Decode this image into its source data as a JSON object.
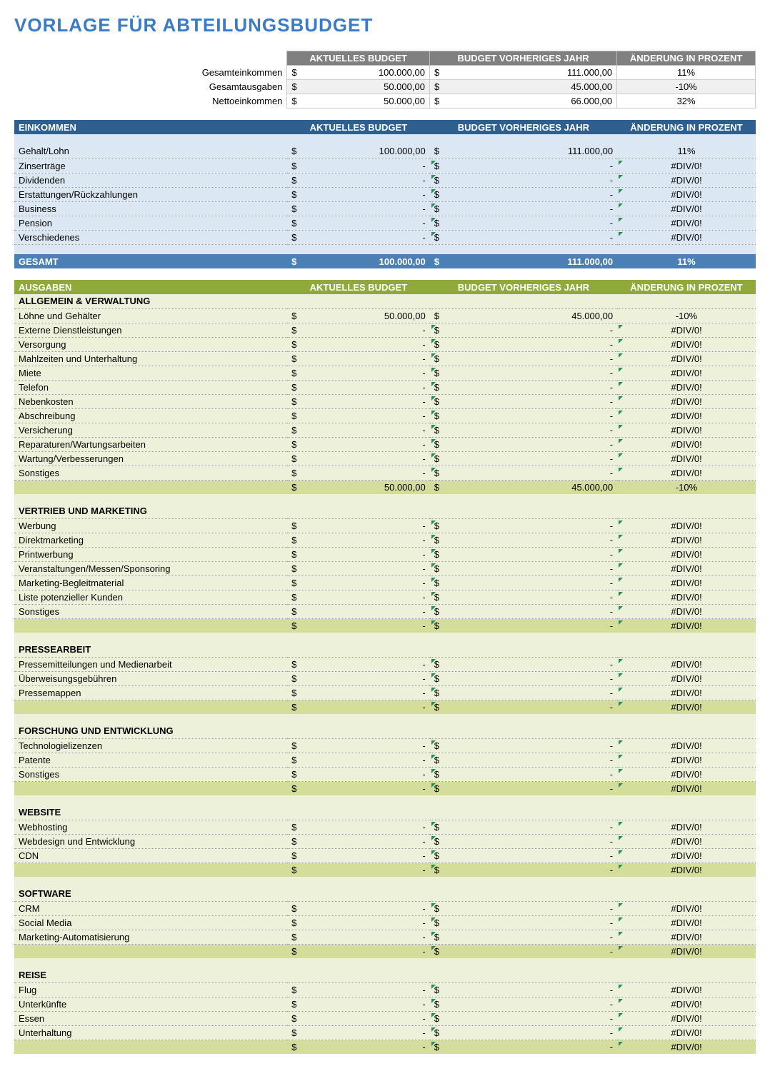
{
  "title": "VORLAGE FÜR ABTEILUNGSBUDGET",
  "columns": {
    "current": "AKTUELLES BUDGET",
    "previous": "BUDGET VORHERIGES JAHR",
    "change": "ÄNDERUNG IN PROZENT"
  },
  "currency": "$",
  "dash": "-",
  "div0": "#DIV/0!",
  "summary": {
    "rows": [
      {
        "label": "Gesamteinkommen",
        "current": "100.000,00",
        "previous": "111.000,00",
        "pct": "11%"
      },
      {
        "label": "Gesamtausgaben",
        "current": "50.000,00",
        "previous": "45.000,00",
        "pct": "-10%"
      },
      {
        "label": "Nettoeinkommen",
        "current": "50.000,00",
        "previous": "66.000,00",
        "pct": "32%"
      }
    ]
  },
  "einkommen": {
    "title": "EINKOMMEN",
    "rows": [
      {
        "label": "Gehalt/Lohn",
        "current": "100.000,00",
        "previous": "111.000,00",
        "pct": "11%",
        "err": false
      },
      {
        "label": "Zinserträge",
        "current": "-",
        "previous": "-",
        "pct": "#DIV/0!",
        "err": true
      },
      {
        "label": "Dividenden",
        "current": "-",
        "previous": "-",
        "pct": "#DIV/0!",
        "err": true
      },
      {
        "label": "Erstattungen/Rückzahlungen",
        "current": "-",
        "previous": "-",
        "pct": "#DIV/0!",
        "err": true
      },
      {
        "label": "Business",
        "current": "-",
        "previous": "-",
        "pct": "#DIV/0!",
        "err": true
      },
      {
        "label": "Pension",
        "current": "-",
        "previous": "-",
        "pct": "#DIV/0!",
        "err": true
      },
      {
        "label": "Verschiedenes",
        "current": "-",
        "previous": "-",
        "pct": "#DIV/0!",
        "err": true
      }
    ],
    "total": {
      "label": "GESAMT",
      "current": "100.000,00",
      "previous": "111.000,00",
      "pct": "11%"
    }
  },
  "ausgaben": {
    "title": "AUSGABEN",
    "groups": [
      {
        "name": "ALLGEMEIN & VERWALTUNG",
        "rows": [
          {
            "label": "Löhne und Gehälter",
            "current": "50.000,00",
            "previous": "45.000,00",
            "pct": "-10%",
            "err": false
          },
          {
            "label": "Externe Dienstleistungen",
            "current": "-",
            "previous": "-",
            "pct": "#DIV/0!",
            "err": true
          },
          {
            "label": "Versorgung",
            "current": "-",
            "previous": "-",
            "pct": "#DIV/0!",
            "err": true
          },
          {
            "label": "Mahlzeiten und Unterhaltung",
            "current": "-",
            "previous": "-",
            "pct": "#DIV/0!",
            "err": true
          },
          {
            "label": "Miete",
            "current": "-",
            "previous": "-",
            "pct": "#DIV/0!",
            "err": true
          },
          {
            "label": "Telefon",
            "current": "-",
            "previous": "-",
            "pct": "#DIV/0!",
            "err": true
          },
          {
            "label": "Nebenkosten",
            "current": "-",
            "previous": "-",
            "pct": "#DIV/0!",
            "err": true
          },
          {
            "label": "Abschreibung",
            "current": "-",
            "previous": "-",
            "pct": "#DIV/0!",
            "err": true
          },
          {
            "label": "Versicherung",
            "current": "-",
            "previous": "-",
            "pct": "#DIV/0!",
            "err": true
          },
          {
            "label": "Reparaturen/Wartungsarbeiten",
            "current": "-",
            "previous": "-",
            "pct": "#DIV/0!",
            "err": true
          },
          {
            "label": "Wartung/Verbesserungen",
            "current": "-",
            "previous": "-",
            "pct": "#DIV/0!",
            "err": true
          },
          {
            "label": "Sonstiges",
            "current": "-",
            "previous": "-",
            "pct": "#DIV/0!",
            "err": true
          }
        ],
        "subtotal": {
          "current": "50.000,00",
          "previous": "45.000,00",
          "pct": "-10%",
          "err": false
        }
      },
      {
        "name": "VERTRIEB UND MARKETING",
        "rows": [
          {
            "label": "Werbung",
            "current": "-",
            "previous": "-",
            "pct": "#DIV/0!",
            "err": true
          },
          {
            "label": "Direktmarketing",
            "current": "-",
            "previous": "-",
            "pct": "#DIV/0!",
            "err": true
          },
          {
            "label": "Printwerbung",
            "current": "-",
            "previous": "-",
            "pct": "#DIV/0!",
            "err": true
          },
          {
            "label": "Veranstaltungen/Messen/Sponsoring",
            "current": "-",
            "previous": "-",
            "pct": "#DIV/0!",
            "err": true
          },
          {
            "label": "Marketing-Begleitmaterial",
            "current": "-",
            "previous": "-",
            "pct": "#DIV/0!",
            "err": true
          },
          {
            "label": "Liste potenzieller Kunden",
            "current": "-",
            "previous": "-",
            "pct": "#DIV/0!",
            "err": true
          },
          {
            "label": "Sonstiges",
            "current": "-",
            "previous": "-",
            "pct": "#DIV/0!",
            "err": true
          }
        ],
        "subtotal": {
          "current": "-",
          "previous": "-",
          "pct": "#DIV/0!",
          "err": true
        }
      },
      {
        "name": "PRESSEARBEIT",
        "rows": [
          {
            "label": "Pressemitteilungen und Medienarbeit",
            "current": "-",
            "previous": "-",
            "pct": "#DIV/0!",
            "err": true
          },
          {
            "label": "Überweisungsgebühren",
            "current": "-",
            "previous": "-",
            "pct": "#DIV/0!",
            "err": true
          },
          {
            "label": "Pressemappen",
            "current": "-",
            "previous": "-",
            "pct": "#DIV/0!",
            "err": true
          }
        ],
        "subtotal": {
          "current": "-",
          "previous": "-",
          "pct": "#DIV/0!",
          "err": true
        }
      },
      {
        "name": "FORSCHUNG UND ENTWICKLUNG",
        "rows": [
          {
            "label": "Technologielizenzen",
            "current": "-",
            "previous": "-",
            "pct": "#DIV/0!",
            "err": true
          },
          {
            "label": "Patente",
            "current": "-",
            "previous": "-",
            "pct": "#DIV/0!",
            "err": true
          },
          {
            "label": "Sonstiges",
            "current": "-",
            "previous": "-",
            "pct": "#DIV/0!",
            "err": true
          }
        ],
        "subtotal": {
          "current": "-",
          "previous": "-",
          "pct": "#DIV/0!",
          "err": true
        }
      },
      {
        "name": "WEBSITE",
        "rows": [
          {
            "label": "Webhosting",
            "current": "-",
            "previous": "-",
            "pct": "#DIV/0!",
            "err": true
          },
          {
            "label": "Webdesign und Entwicklung",
            "current": "-",
            "previous": "-",
            "pct": "#DIV/0!",
            "err": true
          },
          {
            "label": "CDN",
            "current": "-",
            "previous": "-",
            "pct": "#DIV/0!",
            "err": true
          }
        ],
        "subtotal": {
          "current": "-",
          "previous": "-",
          "pct": "#DIV/0!",
          "err": true
        }
      },
      {
        "name": "SOFTWARE",
        "rows": [
          {
            "label": "CRM",
            "current": "-",
            "previous": "-",
            "pct": "#DIV/0!",
            "err": true
          },
          {
            "label": "Social Media",
            "current": "-",
            "previous": "-",
            "pct": "#DIV/0!",
            "err": true
          },
          {
            "label": "Marketing-Automatisierung",
            "current": "-",
            "previous": "-",
            "pct": "#DIV/0!",
            "err": true
          }
        ],
        "subtotal": {
          "current": "-",
          "previous": "-",
          "pct": "#DIV/0!",
          "err": true
        }
      },
      {
        "name": "REISE",
        "rows": [
          {
            "label": "Flug",
            "current": "-",
            "previous": "-",
            "pct": "#DIV/0!",
            "err": true
          },
          {
            "label": "Unterkünfte",
            "current": "-",
            "previous": "-",
            "pct": "#DIV/0!",
            "err": true
          },
          {
            "label": "Essen",
            "current": "-",
            "previous": "-",
            "pct": "#DIV/0!",
            "err": true
          },
          {
            "label": "Unterhaltung",
            "current": "-",
            "previous": "-",
            "pct": "#DIV/0!",
            "err": true
          }
        ],
        "subtotal": {
          "current": "-",
          "previous": "-",
          "pct": "#DIV/0!",
          "err": true
        }
      }
    ]
  },
  "colors": {
    "title": "#3b7bc4",
    "gray_header": "#808080",
    "blue_header": "#2f5f8f",
    "blue_total": "#4a80b5",
    "blue_row": "#dbe7f2",
    "green_header": "#8fa93a",
    "green_row": "#edf1d9",
    "green_subtotal": "#d5dd9a"
  }
}
